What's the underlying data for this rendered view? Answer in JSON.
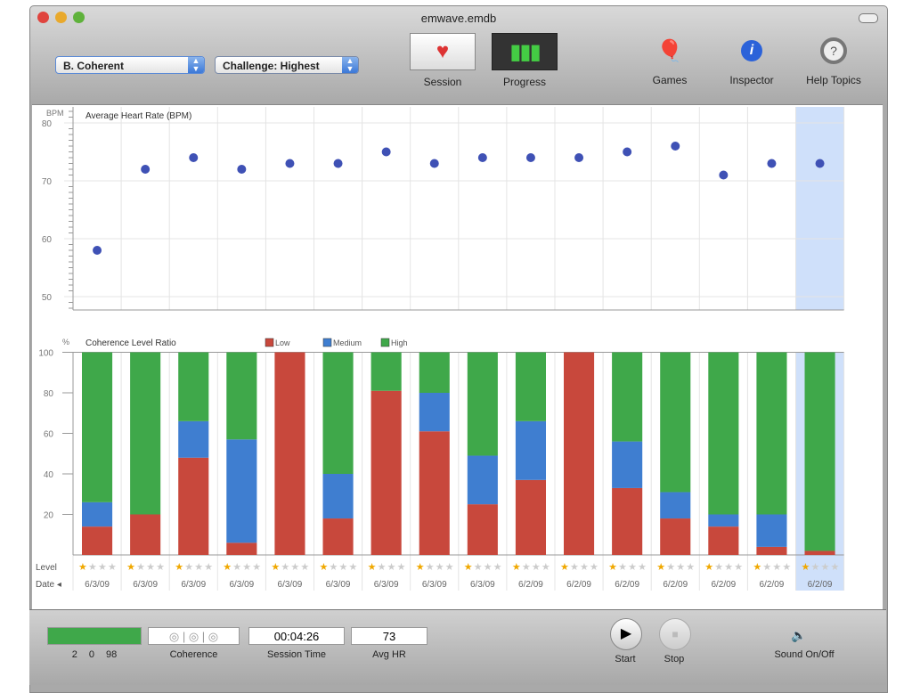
{
  "window": {
    "title": "emwave.emdb"
  },
  "toolbar": {
    "user_select": "B. Coherent",
    "challenge_select": "Challenge: Highest",
    "session": "Session",
    "progress": "Progress",
    "games": "Games",
    "inspector": "Inspector",
    "help": "Help Topics"
  },
  "chart_data": [
    {
      "type": "scatter",
      "title": "Average Heart Rate (BPM)",
      "ylabel": "BPM",
      "ylim": [
        48,
        82
      ],
      "yticks": [
        50,
        60,
        70,
        80
      ],
      "grid": true,
      "values": [
        58,
        72,
        74,
        72,
        73,
        73,
        75,
        73,
        74,
        74,
        74,
        75,
        76,
        71,
        73,
        73
      ],
      "highlighted_index": 15,
      "highlight_color": "#cfe0fa",
      "color": "#3f51b5"
    },
    {
      "type": "bar",
      "stacked": true,
      "title": "Coherence Level Ratio",
      "ylabel": "%",
      "ylim": [
        0,
        100
      ],
      "yticks": [
        20,
        40,
        60,
        80,
        100
      ],
      "legend_placement": "top",
      "categories": [
        "6/3/09",
        "6/3/09",
        "6/3/09",
        "6/3/09",
        "6/3/09",
        "6/3/09",
        "6/3/09",
        "6/3/09",
        "6/3/09",
        "6/2/09",
        "6/2/09",
        "6/2/09",
        "6/2/09",
        "6/2/09",
        "6/2/09",
        "6/2/09"
      ],
      "series": [
        {
          "name": "Low",
          "color": "#c8483c",
          "values": [
            14,
            20,
            48,
            6,
            100,
            18,
            81,
            61,
            25,
            37,
            100,
            33,
            18,
            14,
            4,
            2
          ]
        },
        {
          "name": "Medium",
          "color": "#3f7ed0",
          "values": [
            12,
            0,
            18,
            51,
            0,
            22,
            0,
            19,
            24,
            29,
            0,
            23,
            13,
            6,
            16,
            0
          ]
        },
        {
          "name": "High",
          "color": "#3fa84a",
          "values": [
            74,
            80,
            34,
            43,
            0,
            60,
            19,
            20,
            51,
            34,
            0,
            44,
            69,
            80,
            80,
            98
          ]
        }
      ],
      "level_label": "Level",
      "date_label": "Date",
      "level_stars": [
        1,
        1,
        1,
        1,
        1,
        1,
        1,
        1,
        1,
        1,
        1,
        1,
        1,
        1,
        1,
        1
      ],
      "stars_total": 4
    }
  ],
  "bottom": {
    "ratio_values": "2    0    98",
    "coherence_label": "Coherence",
    "session_time": "00:04:26",
    "session_time_label": "Session Time",
    "avg_hr": "73",
    "avg_hr_label": "Avg HR",
    "start": "Start",
    "stop": "Stop",
    "sound": "Sound On/Off"
  }
}
